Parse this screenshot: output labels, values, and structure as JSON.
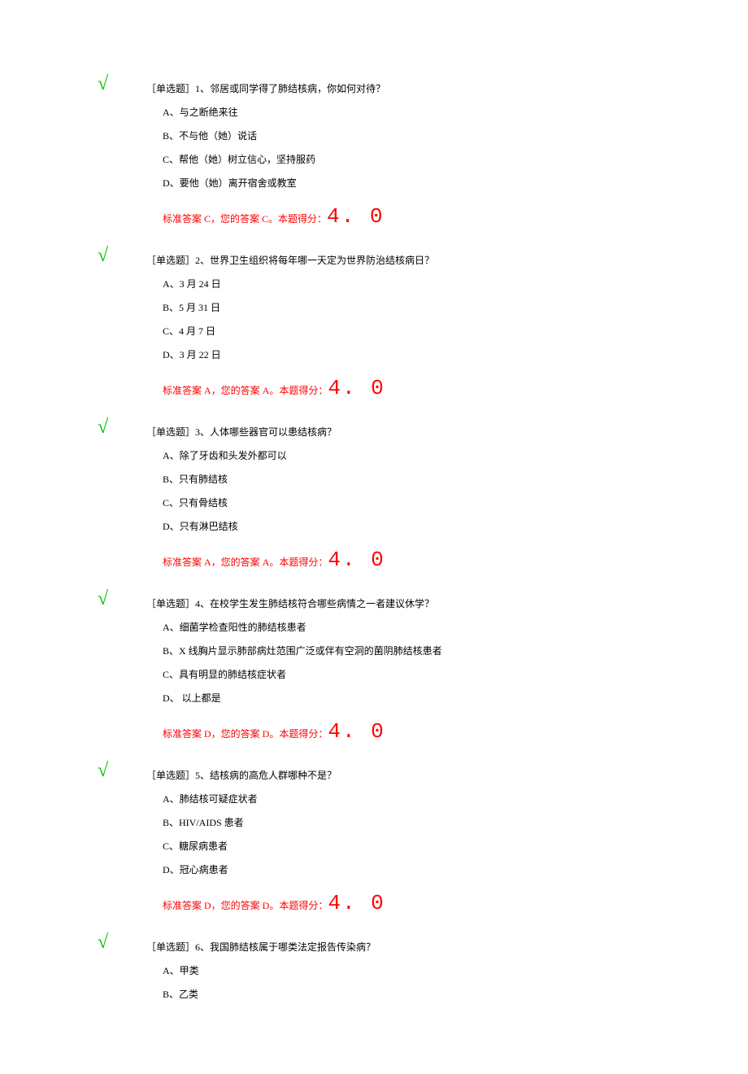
{
  "questions": [
    {
      "title": "［单选题］1、邻居或同学得了肺结核病，你如何对待？",
      "options": [
        "A、与之断绝来往",
        "B、不与他（她）说话",
        "C、帮他（她）树立信心，坚持服药",
        "D、要他（她）离开宿舍或教室"
      ],
      "answer_prefix": "标准答案 C，您的答案 C。本题得分：",
      "score": "4. 0"
    },
    {
      "title": "［单选题］2、世界卫生组织将每年哪一天定为世界防治结核病日？",
      "options": [
        "A、3 月 24 日",
        "B、5 月 31 日",
        "C、4 月 7 日",
        "D、3 月 22 日"
      ],
      "answer_prefix": "标准答案 A，您的答案 A。本题得分：",
      "score": "4. 0"
    },
    {
      "title": "［单选题］3、人体哪些器官可以患结核病？",
      "options": [
        "A、除了牙齿和头发外都可以",
        "B、只有肺结核",
        "C、只有骨结核",
        "D、只有淋巴结核"
      ],
      "answer_prefix": "标准答案 A，您的答案 A。本题得分：",
      "score": "4. 0"
    },
    {
      "title": "［单选题］4、在校学生发生肺结核符合哪些病情之一者建议休学？",
      "options": [
        "A、细菌学检查阳性的肺结核患者",
        "B、X 线胸片显示肺部病灶范围广泛或伴有空洞的菌阴肺结核患者",
        "C、具有明显的肺结核症状者",
        "D、 以上都是"
      ],
      "answer_prefix": "标准答案 D，您的答案 D。本题得分：",
      "score": "4. 0"
    },
    {
      "title": "［单选题］5、结核病的高危人群哪种不是？",
      "options": [
        "A、肺结核可疑症状者",
        "B、HIV/AIDS 患者",
        "C、糖尿病患者",
        "D、冠心病患者"
      ],
      "answer_prefix": "标准答案 D，您的答案 D。本题得分：",
      "score": "4. 0"
    },
    {
      "title": "［单选题］6、我国肺结核属于哪类法定报告传染病？",
      "options": [
        "A、甲类",
        "B、乙类"
      ],
      "answer_prefix": "",
      "score": ""
    }
  ],
  "checkmark_symbol": "√",
  "styling": {
    "background_color": "#ffffff",
    "text_color": "#000000",
    "checkmark_color": "#00c000",
    "answer_color": "#ff0000",
    "body_fontsize": 12,
    "score_fontsize": 26,
    "checkmark_fontsize": 24
  }
}
